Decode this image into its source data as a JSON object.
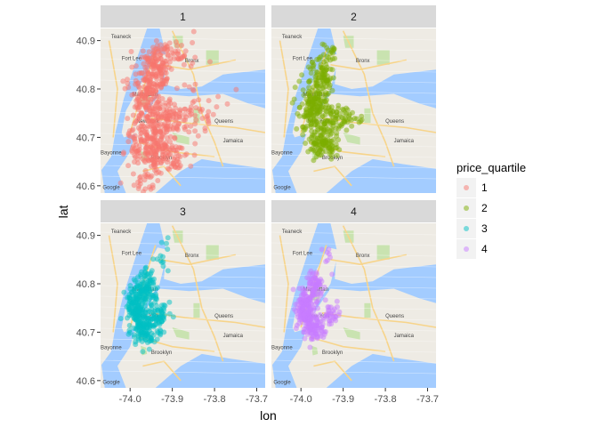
{
  "chart_data": {
    "type": "scatter",
    "facet_by": "price_quartile",
    "panels": [
      {
        "facet": "1",
        "color": "#F8766D"
      },
      {
        "facet": "2",
        "color": "#7CAE00"
      },
      {
        "facet": "3",
        "color": "#00BFC4"
      },
      {
        "facet": "4",
        "color": "#C77CFF"
      }
    ],
    "xlabel": "lon",
    "ylabel": "lat",
    "xlim": [
      -74.07,
      -73.68
    ],
    "ylim": [
      40.585,
      40.925
    ],
    "x_ticks": [
      -74.0,
      -73.9,
      -73.8,
      -73.7
    ],
    "x_tick_labels": [
      "-74.0",
      "-73.9",
      "-73.8",
      "-73.7"
    ],
    "y_ticks": [
      40.6,
      40.7,
      40.8,
      40.9
    ],
    "y_tick_labels": [
      "40.6",
      "40.7",
      "40.8",
      "40.9"
    ],
    "basemap": "street map of New York City",
    "map_labels": [
      "Teaneck",
      "Fort Lee",
      "Bronx",
      "Manhattan",
      "New York",
      "Queens",
      "Brooklyn",
      "Jamaica",
      "Bayonne",
      "Google"
    ],
    "legend": {
      "title": "price_quartile",
      "entries": [
        "1",
        "2",
        "3",
        "4"
      ],
      "position": "right"
    },
    "grid": true,
    "point_clusters": {
      "1": [
        {
          "lon": -73.96,
          "lat": 40.785,
          "spread_lon": 0.035,
          "spread_lat": 0.05,
          "n": 150
        },
        {
          "lon": -73.94,
          "lat": 40.84,
          "spread_lon": 0.03,
          "spread_lat": 0.04,
          "n": 110
        },
        {
          "lon": -73.95,
          "lat": 40.69,
          "spread_lon": 0.045,
          "spread_lat": 0.045,
          "n": 170
        },
        {
          "lon": -73.91,
          "lat": 40.74,
          "spread_lon": 0.04,
          "spread_lat": 0.03,
          "n": 90
        },
        {
          "lon": -73.92,
          "lat": 40.66,
          "spread_lon": 0.05,
          "spread_lat": 0.04,
          "n": 90
        },
        {
          "lon": -73.85,
          "lat": 40.75,
          "spread_lon": 0.06,
          "spread_lat": 0.04,
          "n": 45
        },
        {
          "lon": -73.9,
          "lat": 40.87,
          "spread_lon": 0.05,
          "spread_lat": 0.03,
          "n": 50
        },
        {
          "lon": -73.96,
          "lat": 40.61,
          "spread_lon": 0.04,
          "spread_lat": 0.02,
          "n": 20
        }
      ],
      "2": [
        {
          "lon": -73.97,
          "lat": 40.77,
          "spread_lon": 0.03,
          "spread_lat": 0.05,
          "n": 160
        },
        {
          "lon": -73.945,
          "lat": 40.825,
          "spread_lon": 0.02,
          "spread_lat": 0.035,
          "n": 80
        },
        {
          "lon": -73.95,
          "lat": 40.695,
          "spread_lon": 0.035,
          "spread_lat": 0.035,
          "n": 140
        },
        {
          "lon": -73.9,
          "lat": 40.74,
          "spread_lon": 0.035,
          "spread_lat": 0.025,
          "n": 50
        },
        {
          "lon": -73.93,
          "lat": 40.88,
          "spread_lon": 0.02,
          "spread_lat": 0.02,
          "n": 15
        }
      ],
      "3": [
        {
          "lon": -73.985,
          "lat": 40.755,
          "spread_lon": 0.02,
          "spread_lat": 0.035,
          "n": 160
        },
        {
          "lon": -73.96,
          "lat": 40.8,
          "spread_lon": 0.018,
          "spread_lat": 0.03,
          "n": 80
        },
        {
          "lon": -73.96,
          "lat": 40.705,
          "spread_lon": 0.03,
          "spread_lat": 0.03,
          "n": 130
        },
        {
          "lon": -73.93,
          "lat": 40.735,
          "spread_lon": 0.02,
          "spread_lat": 0.02,
          "n": 40
        },
        {
          "lon": -73.92,
          "lat": 40.86,
          "spread_lon": 0.01,
          "spread_lat": 0.03,
          "n": 12
        }
      ],
      "4": [
        {
          "lon": -73.99,
          "lat": 40.75,
          "spread_lon": 0.018,
          "spread_lat": 0.03,
          "n": 150
        },
        {
          "lon": -73.965,
          "lat": 40.795,
          "spread_lon": 0.015,
          "spread_lat": 0.025,
          "n": 70
        },
        {
          "lon": -73.97,
          "lat": 40.71,
          "spread_lon": 0.025,
          "spread_lat": 0.025,
          "n": 90
        },
        {
          "lon": -73.93,
          "lat": 40.735,
          "spread_lon": 0.02,
          "spread_lat": 0.02,
          "n": 30
        },
        {
          "lon": -73.94,
          "lat": 40.855,
          "spread_lon": 0.01,
          "spread_lat": 0.025,
          "n": 8
        }
      ]
    },
    "point_alpha": 0.5
  },
  "colors": {
    "strip_bg": "#D9D9D9",
    "water": "#A3CCFF",
    "land": "#EEEBE4",
    "park": "#C9E3B0",
    "road": "#F7D48A",
    "legend_bg": "#F2F2F2"
  }
}
